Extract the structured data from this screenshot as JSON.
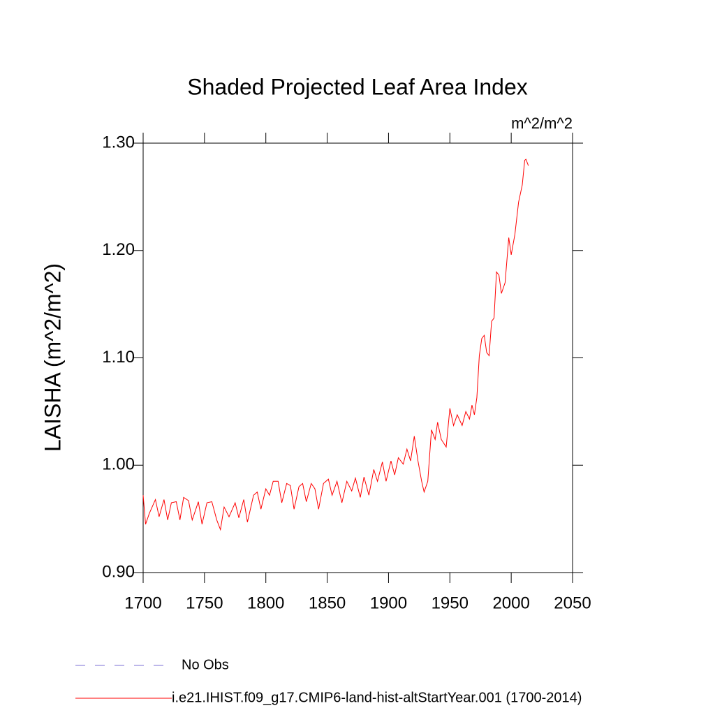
{
  "chart_data": {
    "type": "line",
    "title": "Shaded Projected Leaf Area Index",
    "units": "m^2/m^2",
    "ylabel": "LAISHA  (m^2/m^2)",
    "x": [
      1700,
      1702,
      1705,
      1710,
      1713,
      1717,
      1720,
      1723,
      1727,
      1730,
      1733,
      1737,
      1740,
      1745,
      1748,
      1752,
      1756,
      1760,
      1763,
      1766,
      1770,
      1775,
      1778,
      1782,
      1785,
      1790,
      1793,
      1796,
      1800,
      1803,
      1806,
      1810,
      1813,
      1817,
      1820,
      1823,
      1827,
      1830,
      1833,
      1837,
      1840,
      1843,
      1847,
      1851,
      1854,
      1858,
      1862,
      1866,
      1870,
      1873,
      1877,
      1880,
      1884,
      1888,
      1891,
      1895,
      1898,
      1902,
      1905,
      1908,
      1912,
      1915,
      1918,
      1921,
      1924,
      1927,
      1929,
      1932,
      1935,
      1938,
      1940,
      1943,
      1947,
      1950,
      1953,
      1956,
      1960,
      1963,
      1966,
      1968,
      1970,
      1972,
      1974,
      1976,
      1978,
      1980,
      1982,
      1984,
      1986,
      1988,
      1990,
      1992,
      1995,
      1998,
      2000,
      2003,
      2006,
      2009,
      2011,
      2012,
      2014
    ],
    "series": [
      {
        "name": "i.e21.IHIST.f09_g17.CMIP6-land-hist-altStartYear.001 (1700-2014)",
        "color": "#ff0000",
        "values": [
          0.972,
          0.945,
          0.955,
          0.968,
          0.952,
          0.968,
          0.949,
          0.965,
          0.966,
          0.949,
          0.97,
          0.967,
          0.949,
          0.966,
          0.945,
          0.965,
          0.966,
          0.949,
          0.94,
          0.961,
          0.952,
          0.965,
          0.951,
          0.968,
          0.947,
          0.972,
          0.975,
          0.959,
          0.978,
          0.972,
          0.985,
          0.985,
          0.965,
          0.983,
          0.981,
          0.959,
          0.98,
          0.983,
          0.966,
          0.983,
          0.978,
          0.959,
          0.983,
          0.987,
          0.972,
          0.985,
          0.965,
          0.985,
          0.976,
          0.988,
          0.97,
          0.989,
          0.972,
          0.996,
          0.985,
          1.003,
          0.985,
          1.004,
          0.991,
          1.007,
          1.001,
          1.015,
          1.004,
          1.027,
          1.004,
          0.985,
          0.975,
          0.985,
          1.033,
          1.024,
          1.04,
          1.024,
          1.017,
          1.053,
          1.037,
          1.047,
          1.037,
          1.05,
          1.043,
          1.056,
          1.047,
          1.063,
          1.102,
          1.118,
          1.121,
          1.105,
          1.102,
          1.134,
          1.137,
          1.18,
          1.177,
          1.16,
          1.17,
          1.212,
          1.196,
          1.215,
          1.245,
          1.261,
          1.284,
          1.285,
          1.279
        ]
      }
    ],
    "reference": {
      "name": "No Obs",
      "color": "#7b6fd6",
      "dashed": true
    },
    "xlim": [
      1700,
      2050
    ],
    "xticks": [
      1700,
      1750,
      1800,
      1850,
      1900,
      1950,
      2000,
      2050
    ],
    "ylim": [
      0.9,
      1.3
    ],
    "yticks": [
      {
        "value": 0.9,
        "label": "0.90"
      },
      {
        "value": 1.0,
        "label": "1.00"
      },
      {
        "value": 1.1,
        "label": "1.10"
      },
      {
        "value": 1.2,
        "label": "1.20"
      },
      {
        "value": 1.3,
        "label": "1.30"
      }
    ],
    "grid": false
  }
}
